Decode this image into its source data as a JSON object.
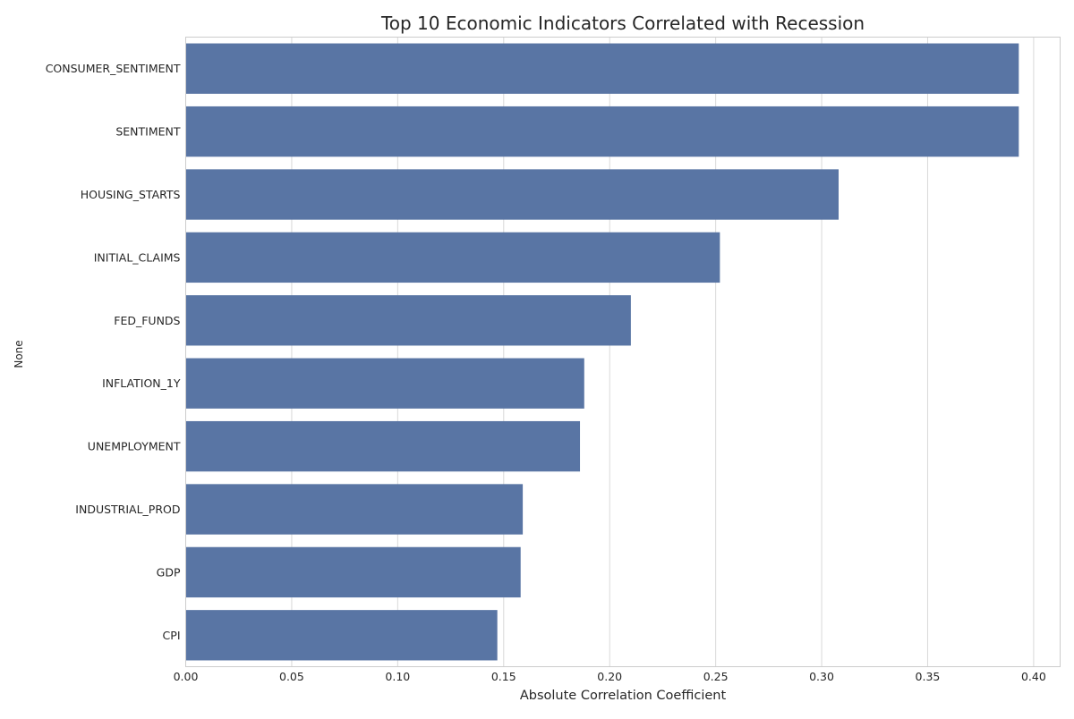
{
  "chart_data": {
    "type": "bar",
    "orientation": "horizontal",
    "title": "Top 10 Economic Indicators Correlated with Recession",
    "xlabel": "Absolute Correlation Coefficient",
    "ylabel": "None",
    "categories": [
      "CONSUMER_SENTIMENT",
      "SENTIMENT",
      "HOUSING_STARTS",
      "INITIAL_CLAIMS",
      "FED_FUNDS",
      "INFLATION_1Y",
      "UNEMPLOYMENT",
      "INDUSTRIAL_PROD",
      "GDP",
      "CPI"
    ],
    "values": [
      0.393,
      0.393,
      0.308,
      0.252,
      0.21,
      0.188,
      0.186,
      0.159,
      0.158,
      0.147
    ],
    "xlim": [
      0.0,
      0.4125
    ],
    "xticks": [
      0.0,
      0.05,
      0.1,
      0.15,
      0.2,
      0.25,
      0.3,
      0.35,
      0.4
    ],
    "xtick_labels": [
      "0.00",
      "0.05",
      "0.10",
      "0.15",
      "0.20",
      "0.25",
      "0.30",
      "0.35",
      "0.40"
    ],
    "grid": "vertical",
    "bar_color": "#5975a4",
    "grid_color": "#d9d9d9",
    "legend": "none"
  }
}
